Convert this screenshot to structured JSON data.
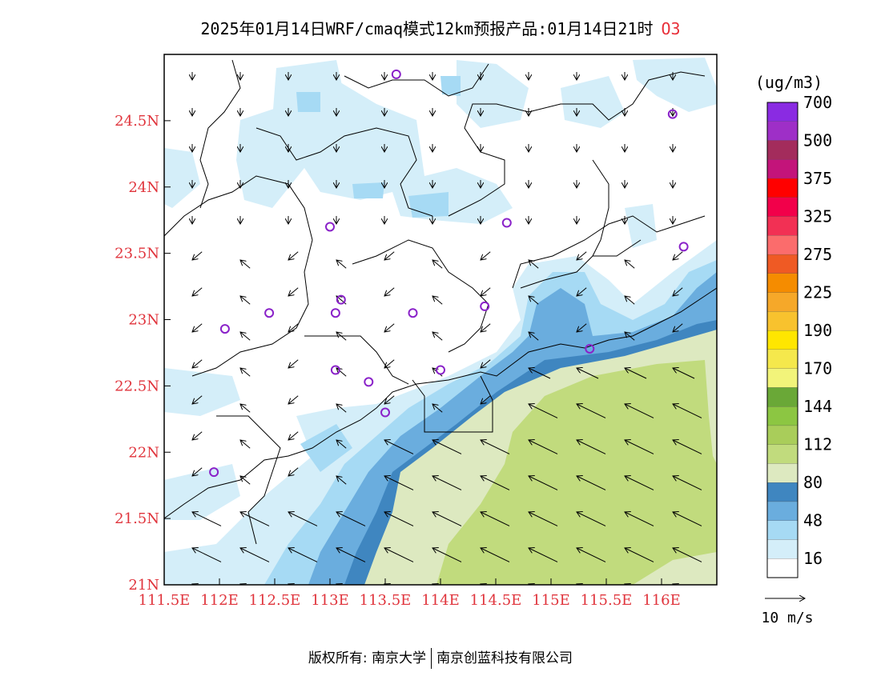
{
  "title": {
    "text": "2025年01月14日WRF/cmaq模式12km预报产品:01月14日21时",
    "pollutant": "O3"
  },
  "map": {
    "lon_range": [
      111.5,
      116.5
    ],
    "lat_range": [
      21.0,
      25.0
    ],
    "lon_ticks": [
      "111.5E",
      "112E",
      "112.5E",
      "113E",
      "113.5E",
      "114E",
      "114.5E",
      "115E",
      "115.5E",
      "116E"
    ],
    "lat_ticks": [
      "21N",
      "21.5N",
      "22N",
      "22.5N",
      "23N",
      "23.5N",
      "24N",
      "24.5N"
    ],
    "stations": [
      {
        "lon": 113.6,
        "lat": 24.85
      },
      {
        "lon": 116.1,
        "lat": 24.55
      },
      {
        "lon": 113.0,
        "lat": 23.7
      },
      {
        "lon": 114.6,
        "lat": 23.73
      },
      {
        "lon": 116.2,
        "lat": 23.55
      },
      {
        "lon": 113.1,
        "lat": 23.15
      },
      {
        "lon": 112.45,
        "lat": 23.05
      },
      {
        "lon": 113.05,
        "lat": 23.05
      },
      {
        "lon": 113.75,
        "lat": 23.05
      },
      {
        "lon": 114.4,
        "lat": 23.1
      },
      {
        "lon": 112.05,
        "lat": 22.93
      },
      {
        "lon": 115.35,
        "lat": 22.78
      },
      {
        "lon": 113.05,
        "lat": 22.62
      },
      {
        "lon": 113.35,
        "lat": 22.53
      },
      {
        "lon": 114.0,
        "lat": 22.62
      },
      {
        "lon": 113.5,
        "lat": 22.3
      },
      {
        "lon": 111.95,
        "lat": 21.85
      }
    ]
  },
  "colorbar": {
    "unit": "(ug/m3)",
    "colors": [
      "#ffffff",
      "#d4eef9",
      "#a6daf4",
      "#6aadde",
      "#3f86c0",
      "#dde9c0",
      "#c1db7d",
      "#a9cd5a",
      "#8cc642",
      "#6aa837",
      "#f2f47a",
      "#f5e84c",
      "#ffe600",
      "#f8c22e",
      "#f6a829",
      "#f58c00",
      "#ef5a24",
      "#fb6c6c",
      "#f23054",
      "#f2004a",
      "#ff0000",
      "#c3147a",
      "#a32c5c",
      "#9e2fc7",
      "#8a2be2"
    ],
    "labels": [
      "16",
      "48",
      "80",
      "112",
      "144",
      "170",
      "190",
      "225",
      "275",
      "325",
      "375",
      "500",
      "700"
    ]
  },
  "wind_legend": {
    "label": "10 m/s"
  },
  "footer": {
    "left": "版权所有: 南京大学",
    "right": "南京创蓝科技有限公司"
  }
}
